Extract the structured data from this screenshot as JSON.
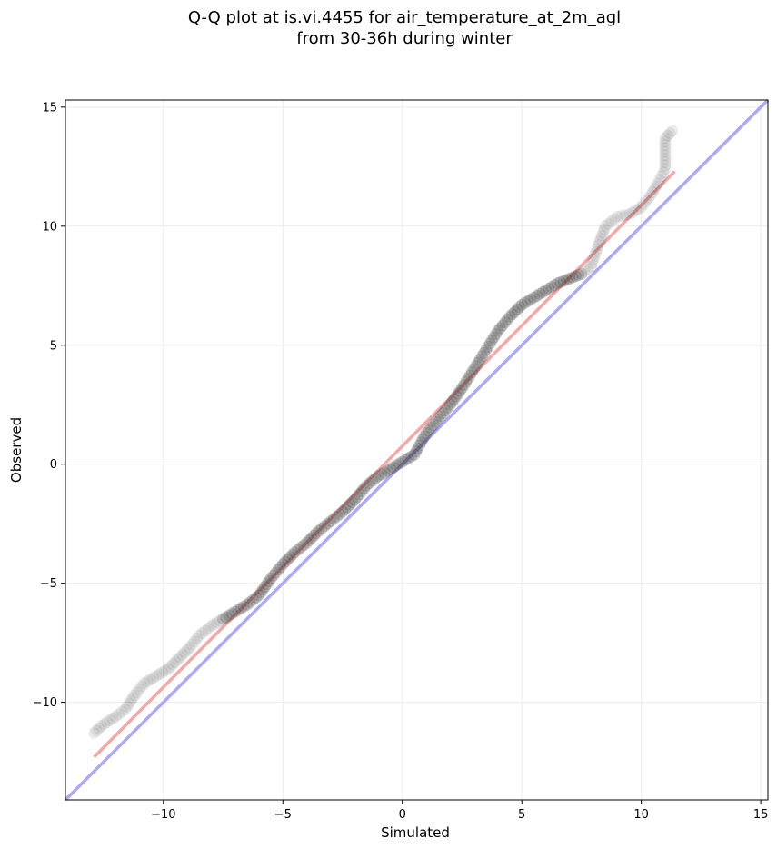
{
  "chart_data": {
    "type": "scatter",
    "title_line1": "Q-Q plot at is.vi.4455 for air_temperature_at_2m_agl",
    "title_line2": "from 30-36h during winter",
    "xlabel": "Simulated",
    "ylabel": "Observed",
    "xlim": [
      -14.1,
      15.3
    ],
    "ylim": [
      -14.1,
      15.3
    ],
    "grid": true,
    "x_ticks": [
      -10,
      -5,
      0,
      5,
      10,
      15
    ],
    "y_ticks": [
      -10,
      -5,
      0,
      5,
      10,
      15
    ],
    "x_tick_labels": [
      "−10",
      "−5",
      "0",
      "5",
      "10",
      "15"
    ],
    "y_tick_labels": [
      "−10",
      "−5",
      "0",
      "5",
      "10",
      "15"
    ],
    "identity_line": {
      "color": "#aaaaf5",
      "from": [
        -14.1,
        -14.1
      ],
      "to": [
        15.3,
        15.3
      ]
    },
    "fit_line": {
      "color": "#f5a8a8",
      "from": [
        -12.9,
        -12.3
      ],
      "to": [
        11.4,
        12.3
      ]
    },
    "quantile_curve": [
      [
        -12.9,
        -11.3
      ],
      [
        -12.6,
        -11.0
      ],
      [
        -12.0,
        -10.6
      ],
      [
        -11.6,
        -10.3
      ],
      [
        -11.2,
        -9.7
      ],
      [
        -10.8,
        -9.2
      ],
      [
        -10.3,
        -8.9
      ],
      [
        -9.8,
        -8.6
      ],
      [
        -9.4,
        -8.2
      ],
      [
        -8.9,
        -7.7
      ],
      [
        -8.5,
        -7.2
      ],
      [
        -8.0,
        -6.8
      ],
      [
        -7.5,
        -6.5
      ],
      [
        -7.0,
        -6.2
      ],
      [
        -6.5,
        -5.9
      ],
      [
        -6.0,
        -5.5
      ],
      [
        -5.5,
        -4.8
      ],
      [
        -5.0,
        -4.2
      ],
      [
        -4.5,
        -3.7
      ],
      [
        -4.0,
        -3.3
      ],
      [
        -3.5,
        -2.8
      ],
      [
        -3.0,
        -2.4
      ],
      [
        -2.5,
        -2.0
      ],
      [
        -2.0,
        -1.5
      ],
      [
        -1.5,
        -0.9
      ],
      [
        -1.0,
        -0.5
      ],
      [
        -0.5,
        -0.2
      ],
      [
        0.0,
        0.1
      ],
      [
        0.5,
        0.4
      ],
      [
        1.0,
        1.3
      ],
      [
        1.5,
        1.9
      ],
      [
        2.0,
        2.5
      ],
      [
        2.5,
        3.2
      ],
      [
        3.0,
        4.0
      ],
      [
        3.5,
        4.8
      ],
      [
        4.0,
        5.6
      ],
      [
        4.5,
        6.2
      ],
      [
        5.0,
        6.7
      ],
      [
        5.5,
        7.0
      ],
      [
        6.0,
        7.3
      ],
      [
        6.5,
        7.6
      ],
      [
        7.0,
        7.8
      ],
      [
        7.5,
        8.0
      ],
      [
        7.9,
        8.3
      ],
      [
        8.2,
        9.2
      ],
      [
        8.5,
        10.0
      ],
      [
        9.0,
        10.4
      ],
      [
        9.5,
        10.5
      ],
      [
        10.0,
        10.8
      ],
      [
        10.4,
        11.3
      ],
      [
        10.7,
        11.8
      ],
      [
        11.0,
        12.4
      ],
      [
        11.0,
        13.7
      ],
      [
        11.3,
        14.0
      ]
    ],
    "point_color": "#333333"
  }
}
